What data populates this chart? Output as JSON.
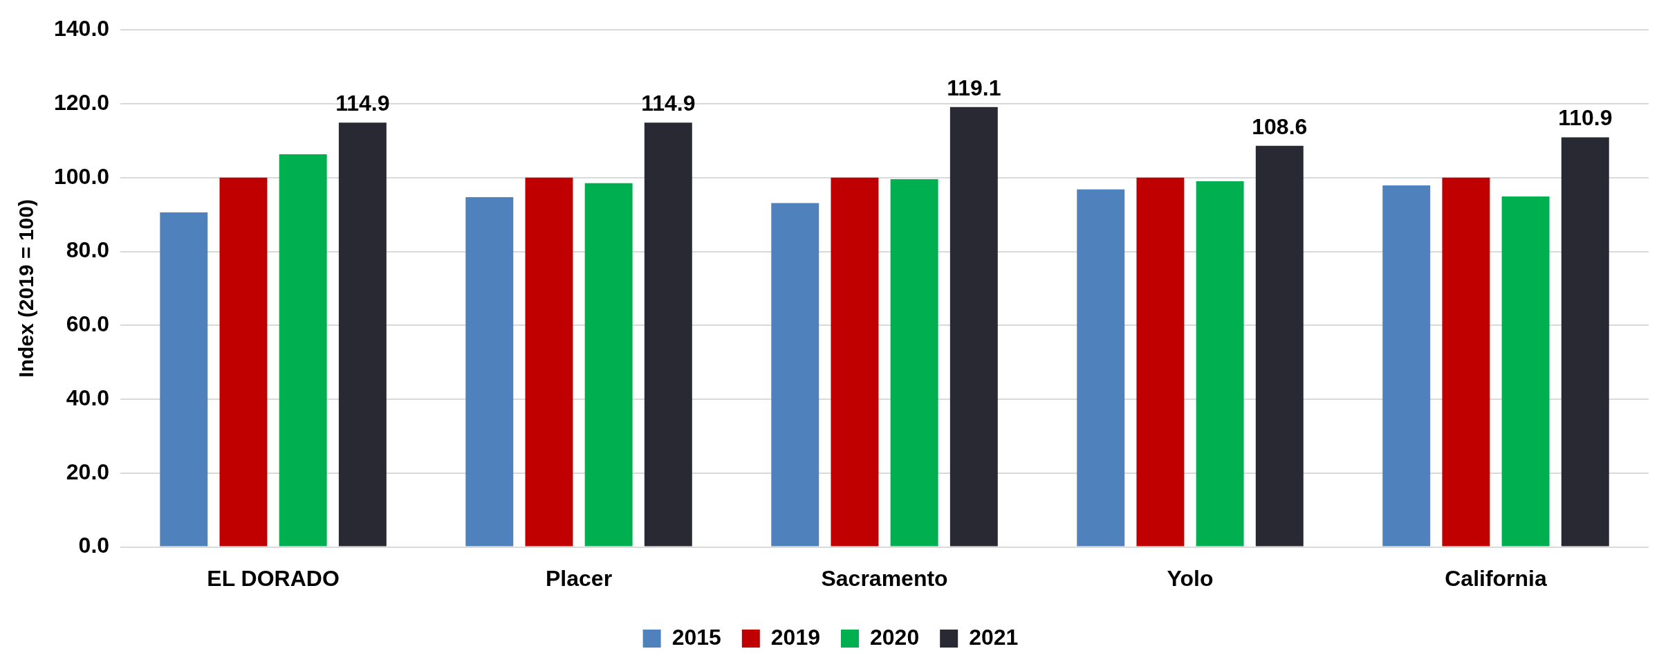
{
  "chart_data": {
    "type": "bar",
    "ylabel": "Index (2019 = 100)",
    "categories": [
      "EL DORADO",
      "Placer",
      "Sacramento",
      "Yolo",
      "California"
    ],
    "series": [
      {
        "name": "2015",
        "color": "#4f81bd",
        "values": [
          90.6,
          94.7,
          93.1,
          96.8,
          97.9
        ]
      },
      {
        "name": "2019",
        "color": "#c00000",
        "values": [
          100,
          100,
          100,
          100,
          100
        ]
      },
      {
        "name": "2020",
        "color": "#00b050",
        "values": [
          106.3,
          98.5,
          99.6,
          99.0,
          94.9
        ]
      },
      {
        "name": "2021",
        "color": "#292933",
        "values": [
          114.9,
          114.9,
          119.1,
          108.6,
          110.9
        ],
        "value_labels": [
          "114.9",
          "114.9",
          "119.1",
          "108.6",
          "110.9"
        ]
      }
    ],
    "ylim": [
      0,
      140
    ],
    "yticks": [
      {
        "value": 0,
        "label": "0.0"
      },
      {
        "value": 20,
        "label": "20.0"
      },
      {
        "value": 40,
        "label": "40.0"
      },
      {
        "value": 60,
        "label": "60.0"
      },
      {
        "value": 80,
        "label": "80.0"
      },
      {
        "value": 100,
        "label": "100.0"
      },
      {
        "value": 120,
        "label": "120.0"
      },
      {
        "value": 140,
        "label": "140.0"
      }
    ],
    "grid": "y",
    "legend": "bottom"
  }
}
